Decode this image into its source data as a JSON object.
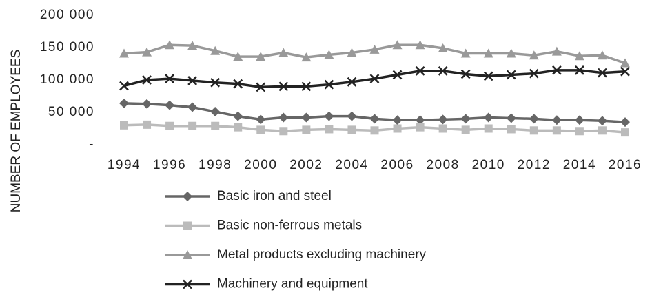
{
  "chart_data": {
    "type": "line",
    "y_label": "NUMBER OF EMPLOYEES",
    "x": [
      1994,
      1995,
      1996,
      1997,
      1998,
      1999,
      2000,
      2001,
      2002,
      2003,
      2004,
      2005,
      2006,
      2007,
      2008,
      2009,
      2010,
      2011,
      2012,
      2013,
      2014,
      2015,
      2016
    ],
    "xlim": [
      1994,
      2016
    ],
    "xticks": [
      1994,
      1996,
      1998,
      2000,
      2002,
      2004,
      2006,
      2008,
      2010,
      2012,
      2014,
      2016
    ],
    "ylim": [
      0,
      200000
    ],
    "yticks": [
      {
        "value": 0,
        "label": "-"
      },
      {
        "value": 50000,
        "label": "50 000"
      },
      {
        "value": 100000,
        "label": "100 000"
      },
      {
        "value": 150000,
        "label": "150 000"
      },
      {
        "value": 200000,
        "label": "200 000"
      }
    ],
    "grid": false,
    "legend": "bottom",
    "series": [
      {
        "name": "Basic iron and steel",
        "color": "#666666",
        "marker": "diamond",
        "values": [
          64000,
          63000,
          61000,
          58000,
          51000,
          44000,
          39000,
          42000,
          42000,
          44000,
          44000,
          40000,
          38000,
          38000,
          39000,
          40000,
          42000,
          41000,
          40000,
          38000,
          38000,
          37000,
          35000
        ]
      },
      {
        "name": "Basic non-ferrous metals",
        "color": "#bbbbbb",
        "marker": "square",
        "values": [
          30000,
          31000,
          29000,
          29000,
          29000,
          27000,
          23000,
          21000,
          23000,
          24000,
          23000,
          22000,
          25000,
          27000,
          25000,
          23000,
          25000,
          24000,
          22000,
          22000,
          21000,
          22000,
          19000
        ]
      },
      {
        "name": "Metal products excluding machinery",
        "color": "#999999",
        "marker": "triangle",
        "values": [
          141000,
          143000,
          154000,
          153000,
          145000,
          136000,
          136000,
          142000,
          135000,
          139000,
          142000,
          147000,
          154000,
          154000,
          149000,
          141000,
          141000,
          141000,
          138000,
          144000,
          137000,
          138000,
          126000
        ]
      },
      {
        "name": "Machinery and equipment",
        "color": "#222222",
        "marker": "x",
        "values": [
          91000,
          100000,
          102000,
          99000,
          96000,
          94000,
          89000,
          90000,
          90000,
          93000,
          97000,
          102000,
          108000,
          114000,
          114000,
          109000,
          106000,
          108000,
          110000,
          115000,
          115000,
          111000,
          113000
        ]
      }
    ]
  }
}
